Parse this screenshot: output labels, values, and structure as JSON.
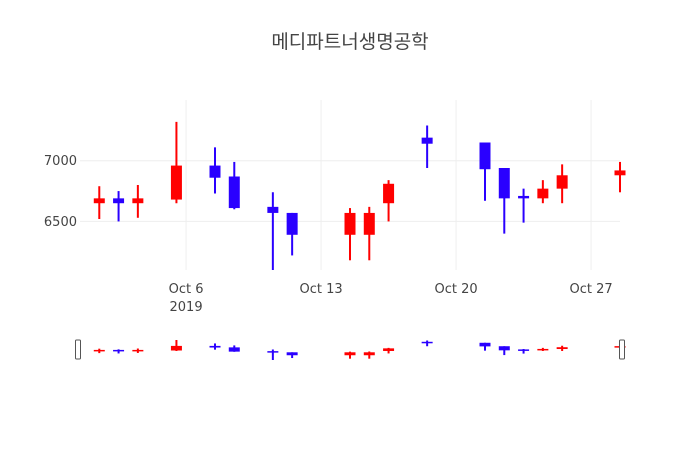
{
  "chart_data": {
    "type": "candlestick",
    "title": "메디파트너생명공학",
    "x_axis": {
      "type": "date",
      "ticks": [
        {
          "date": "2019-10-06",
          "label": "Oct 6",
          "sublabel": "2019"
        },
        {
          "date": "2019-10-13",
          "label": "Oct 13",
          "sublabel": ""
        },
        {
          "date": "2019-10-20",
          "label": "Oct 20",
          "sublabel": ""
        },
        {
          "date": "2019-10-27",
          "label": "Oct 27",
          "sublabel": ""
        }
      ],
      "range": [
        "2019-09-30",
        "2019-10-28"
      ]
    },
    "y_axis": {
      "ticks": [
        6500,
        7000
      ],
      "tick_labels": [
        "6500",
        "7000"
      ],
      "range": [
        6100,
        7500
      ]
    },
    "grid": true,
    "rangeslider": true,
    "colors": {
      "increasing": "#ff0000",
      "decreasing": "#2a00ff",
      "grid": "#eeeeee",
      "text": "#444444"
    },
    "candles": [
      {
        "date": "2019-10-01",
        "open": 6650,
        "high": 6790,
        "low": 6520,
        "close": 6690
      },
      {
        "date": "2019-10-02",
        "open": 6690,
        "high": 6750,
        "low": 6500,
        "close": 6650
      },
      {
        "date": "2019-10-03",
        "open": 6650,
        "high": 6800,
        "low": 6530,
        "close": 6690
      },
      {
        "date": "2019-10-05",
        "open": 6680,
        "high": 7320,
        "low": 6650,
        "close": 6960
      },
      {
        "date": "2019-10-07",
        "open": 6960,
        "high": 7110,
        "low": 6730,
        "close": 6860
      },
      {
        "date": "2019-10-08",
        "open": 6870,
        "high": 6990,
        "low": 6600,
        "close": 6610
      },
      {
        "date": "2019-10-10",
        "open": 6620,
        "high": 6740,
        "low": 6100,
        "close": 6570
      },
      {
        "date": "2019-10-11",
        "open": 6570,
        "high": 6570,
        "low": 6220,
        "close": 6390
      },
      {
        "date": "2019-10-14",
        "open": 6390,
        "high": 6610,
        "low": 6180,
        "close": 6570
      },
      {
        "date": "2019-10-15",
        "open": 6390,
        "high": 6620,
        "low": 6180,
        "close": 6570
      },
      {
        "date": "2019-10-16",
        "open": 6650,
        "high": 6840,
        "low": 6500,
        "close": 6810
      },
      {
        "date": "2019-10-18",
        "open": 7190,
        "high": 7290,
        "low": 6940,
        "close": 7140
      },
      {
        "date": "2019-10-21",
        "open": 7150,
        "high": 7150,
        "low": 6670,
        "close": 6930
      },
      {
        "date": "2019-10-22",
        "open": 6940,
        "high": 6940,
        "low": 6400,
        "close": 6690
      },
      {
        "date": "2019-10-23",
        "open": 6710,
        "high": 6770,
        "low": 6490,
        "close": 6690
      },
      {
        "date": "2019-10-24",
        "open": 6690,
        "high": 6840,
        "low": 6650,
        "close": 6770
      },
      {
        "date": "2019-10-25",
        "open": 6770,
        "high": 6970,
        "low": 6650,
        "close": 6880
      },
      {
        "date": "2019-10-28",
        "open": 6880,
        "high": 6990,
        "low": 6740,
        "close": 6920
      }
    ]
  }
}
